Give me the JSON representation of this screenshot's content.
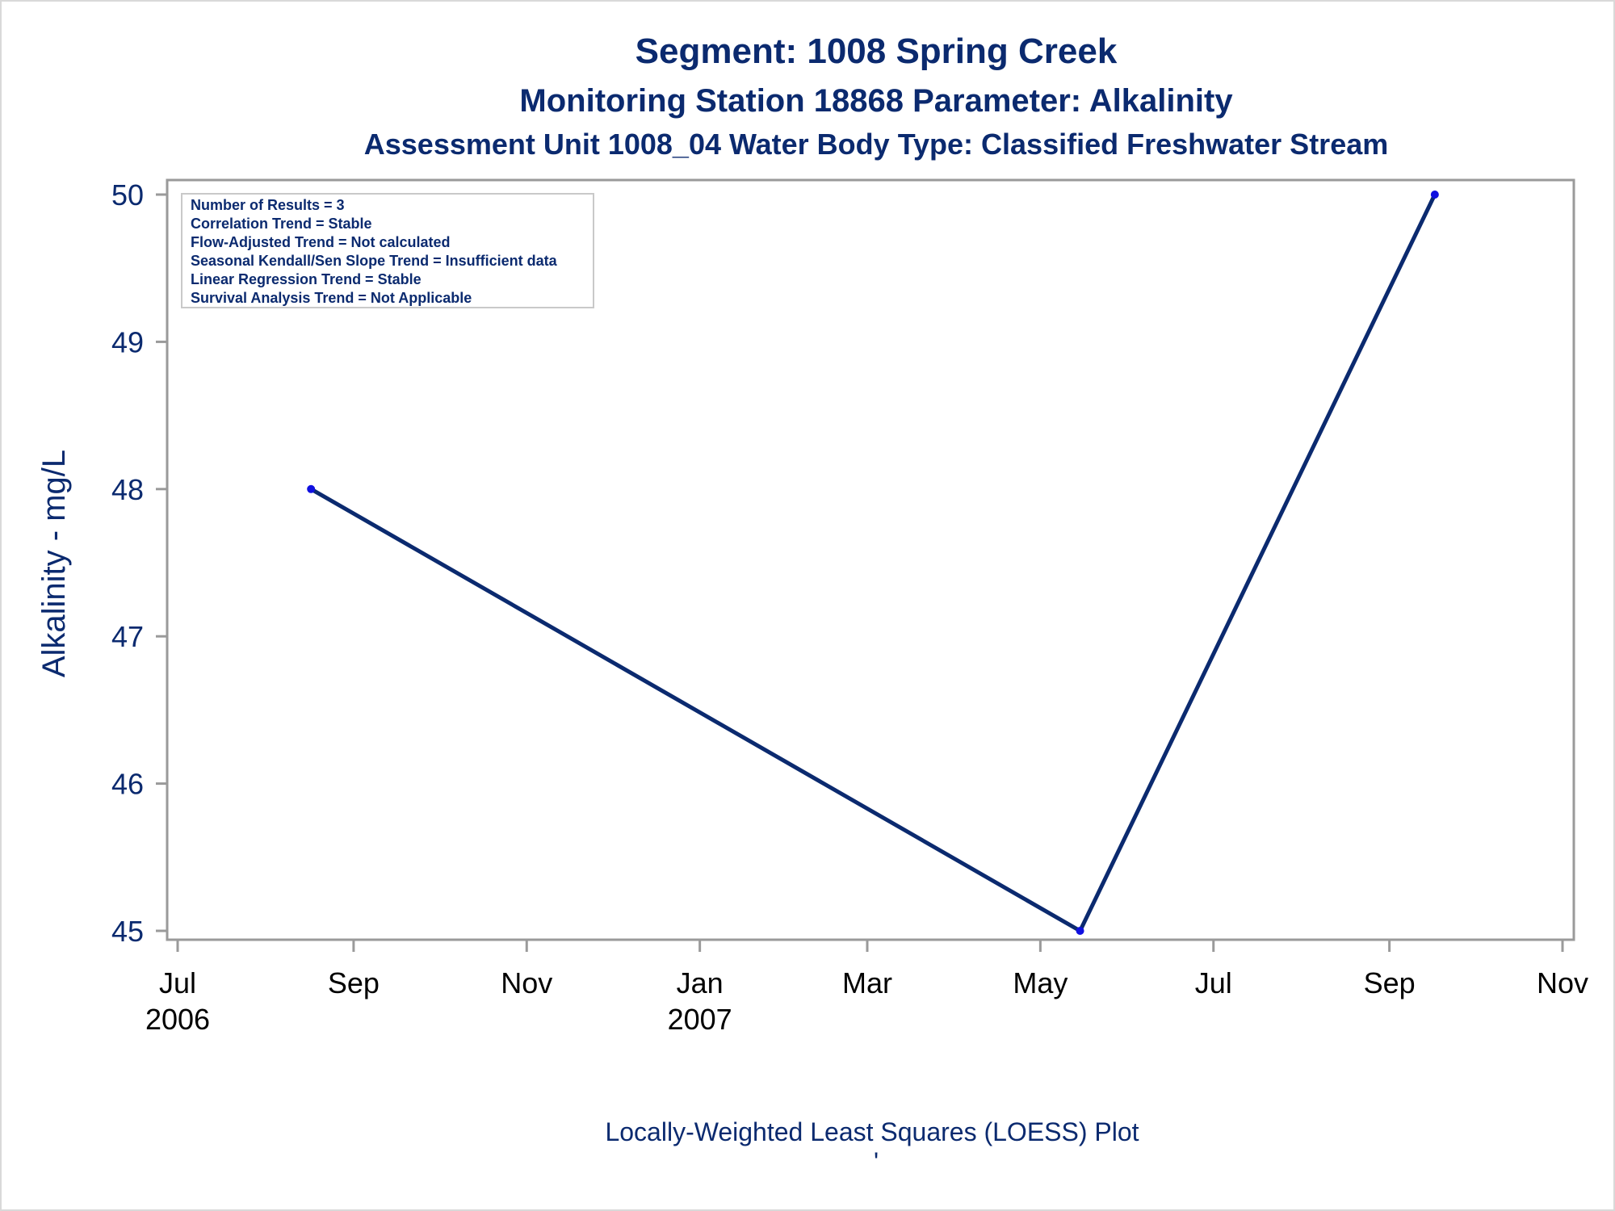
{
  "titles": {
    "line1": "Segment: 1008  Spring Creek",
    "line2": "Monitoring Station 18868 Parameter: Alkalinity",
    "line3": "Assessment Unit 1008_04   Water Body Type: Classified Freshwater Stream"
  },
  "stats_box": {
    "lines": [
      "Number of Results = 3",
      "Correlation Trend = Stable",
      "Flow-Adjusted Trend = Not calculated",
      "Seasonal Kendall/Sen Slope Trend = Insufficient data",
      "Linear Regression Trend = Stable",
      "Survival Analysis Trend = Not Applicable"
    ]
  },
  "footnote": {
    "main": "Locally-Weighted Least Squares (LOESS) Plot",
    "mark": "'"
  },
  "colors": {
    "title": "#0b2a6f",
    "line": "#0b2a6f",
    "point": "#1010e0",
    "axis": "#9a9a9a",
    "ytick_text": "#0b2a6f",
    "xtick_text": "#000000"
  },
  "chart_data": {
    "type": "line",
    "title": "Segment: 1008  Spring Creek",
    "ylabel": "Alkalinity - mg/L",
    "xlabel": "",
    "x_axis_type": "date",
    "xlim": [
      "2006-07-01",
      "2007-11-01"
    ],
    "ylim": [
      45,
      50
    ],
    "yticks": [
      45,
      46,
      47,
      48,
      49,
      50
    ],
    "xticks": [
      {
        "date": "2006-07-01",
        "label": "Jul",
        "year": "2006"
      },
      {
        "date": "2006-09-01",
        "label": "Sep",
        "year": ""
      },
      {
        "date": "2006-11-01",
        "label": "Nov",
        "year": ""
      },
      {
        "date": "2007-01-01",
        "label": "Jan",
        "year": "2007"
      },
      {
        "date": "2007-03-01",
        "label": "Mar",
        "year": ""
      },
      {
        "date": "2007-05-01",
        "label": "May",
        "year": ""
      },
      {
        "date": "2007-07-01",
        "label": "Jul",
        "year": ""
      },
      {
        "date": "2007-09-01",
        "label": "Sep",
        "year": ""
      },
      {
        "date": "2007-11-01",
        "label": "Nov",
        "year": ""
      }
    ],
    "series": [
      {
        "points": [
          {
            "x": "2006-08-17",
            "y": 48
          },
          {
            "x": "2007-05-15",
            "y": 45
          },
          {
            "x": "2007-09-17",
            "y": 50
          }
        ]
      }
    ],
    "grid": false,
    "legend": "none"
  }
}
